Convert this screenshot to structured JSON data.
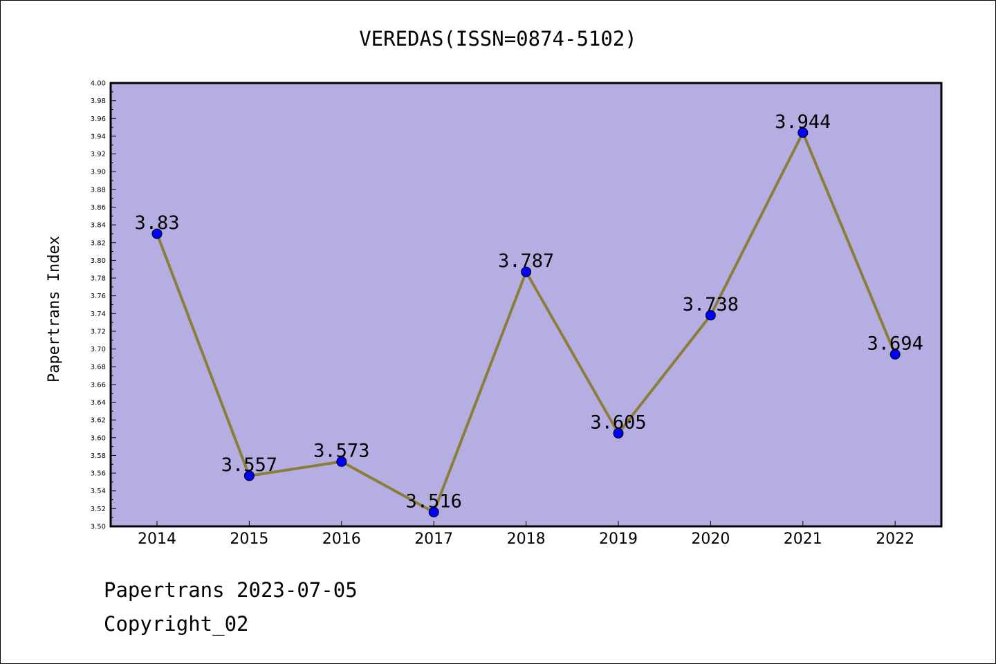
{
  "chart_data": {
    "type": "line",
    "title": "VEREDAS(ISSN=0874-5102)",
    "xlabel": "",
    "ylabel": "Papertrans Index",
    "categories": [
      "2014",
      "2015",
      "2016",
      "2017",
      "2018",
      "2019",
      "2020",
      "2021",
      "2022"
    ],
    "series": [
      {
        "values": [
          3.83,
          3.557,
          3.573,
          3.516,
          3.787,
          3.605,
          3.738,
          3.944,
          3.694
        ],
        "labels": [
          "3.83",
          "3.557",
          "3.573",
          "3.516",
          "3.787",
          "3.605",
          "3.738",
          "3.944",
          "3.694"
        ]
      }
    ],
    "ylim": [
      3.5,
      4.0
    ],
    "yticks": [
      "3.50",
      "3.52",
      "3.54",
      "3.56",
      "3.58",
      "3.60",
      "3.62",
      "3.64",
      "3.66",
      "3.68",
      "3.70",
      "3.72",
      "3.74",
      "3.76",
      "3.78",
      "3.80",
      "3.82",
      "3.84",
      "3.86",
      "3.88",
      "3.90",
      "3.92",
      "3.94",
      "3.96",
      "3.98",
      "4.00"
    ],
    "grid": false,
    "legend": "none"
  },
  "footer": {
    "date_text": "Papertrans 2023-07-05",
    "copyright_text": "Copyright_02"
  },
  "colors": {
    "plot_background": "#b4aee2",
    "line": "#8b7d3a",
    "marker": "#0000ff",
    "axis": "#000000"
  }
}
